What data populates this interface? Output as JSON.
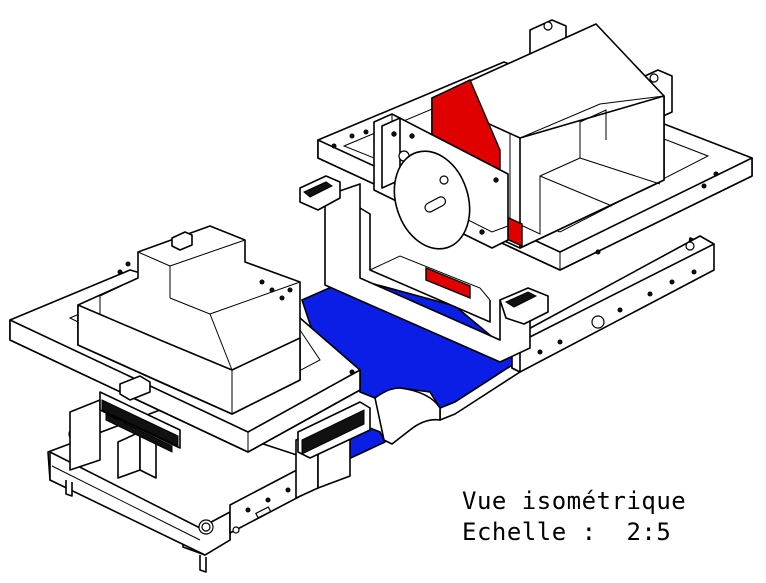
{
  "caption": {
    "view_label": "Vue isométrique",
    "scale_label": "Echelle :  2:5"
  },
  "colors": {
    "plate": "#0a1ee6",
    "jaw_face": "#e00000",
    "line": "#000000",
    "background": "#ffffff"
  }
}
